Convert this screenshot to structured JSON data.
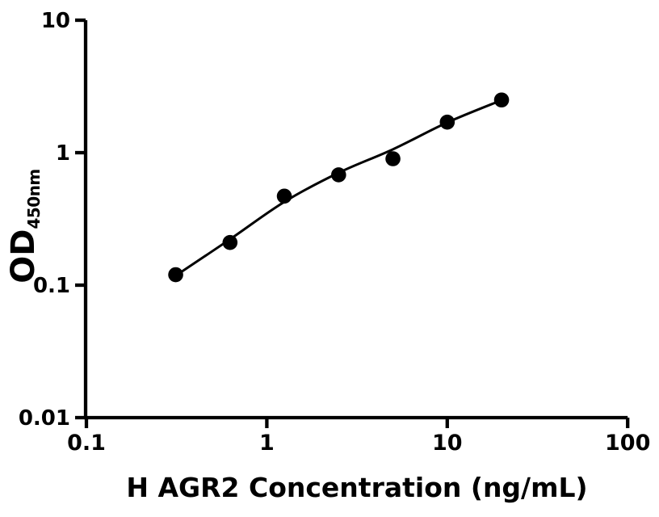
{
  "figure": {
    "background": "#ffffff",
    "foreground": "#000000"
  },
  "chart_data": {
    "type": "scatter",
    "title": "",
    "xlabel": "H AGR2 Concentration (ng/mL)",
    "ylabel": "OD",
    "ylabel_sub": "450nm",
    "xscale": "log",
    "yscale": "log",
    "xlim": [
      0.1,
      100
    ],
    "ylim": [
      0.01,
      10
    ],
    "grid": false,
    "legend": null,
    "x_ticks": [
      {
        "v": 0.1,
        "label": "0.1"
      },
      {
        "v": 1,
        "label": "1"
      },
      {
        "v": 10,
        "label": "10"
      },
      {
        "v": 100,
        "label": "100"
      }
    ],
    "y_ticks": [
      {
        "v": 0.01,
        "label": "0.01"
      },
      {
        "v": 0.1,
        "label": "0.1"
      },
      {
        "v": 1,
        "label": "1"
      },
      {
        "v": 10,
        "label": "10"
      }
    ],
    "series": [
      {
        "name": "standard-points",
        "marker": "circle",
        "marker_color": "#000000",
        "x": [
          0.3125,
          0.625,
          1.25,
          2.5,
          5,
          10,
          20
        ],
        "y": [
          0.12,
          0.21,
          0.47,
          0.68,
          0.9,
          1.7,
          2.5
        ]
      }
    ],
    "fit_curve": {
      "name": "fitted-standard-curve",
      "color": "#000000",
      "x": [
        0.3125,
        0.625,
        1.25,
        2.5,
        5,
        10,
        20
      ],
      "y": [
        0.118,
        0.222,
        0.425,
        0.705,
        1.06,
        1.69,
        2.49
      ]
    }
  }
}
